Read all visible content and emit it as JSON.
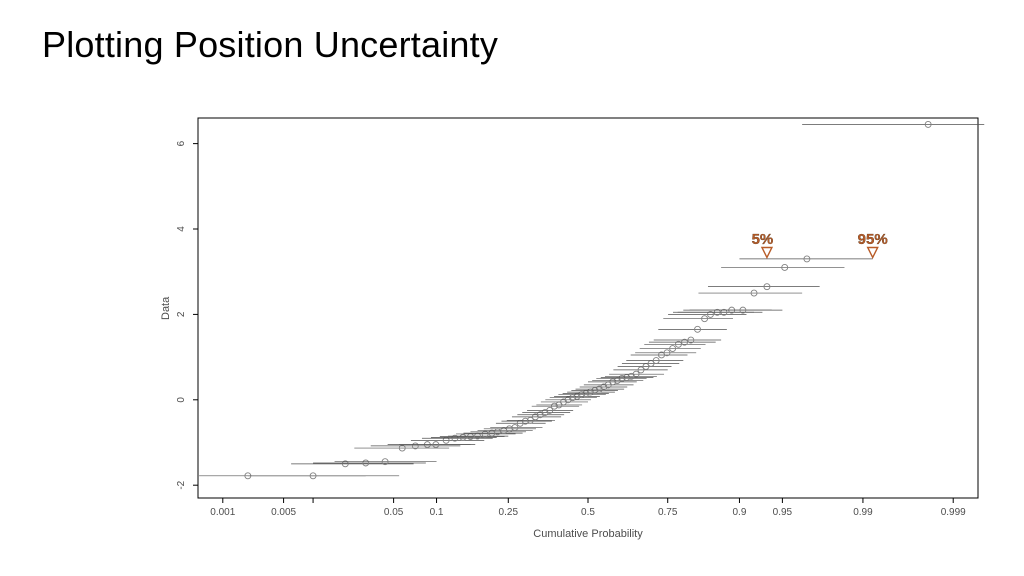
{
  "title": "Plotting Position Uncertainty",
  "chart": {
    "type": "scatter-errorbar-probability",
    "xlabel": "Cumulative Probability",
    "ylabel": "Data",
    "background_color": "#ffffff",
    "border_color": "#000000",
    "tick_color": "#000000",
    "grid_on": false,
    "label_fontsize": 11,
    "tick_fontsize": 10,
    "marker_style": "circle-open",
    "marker_size": 3,
    "marker_color": "#808080",
    "errorbar_color": "#505050",
    "errorbar_width": 0.7,
    "xticks_prob": [
      0.001,
      0.005,
      0.01,
      0.05,
      0.1,
      0.25,
      0.5,
      0.75,
      0.9,
      0.95,
      0.99,
      0.999
    ],
    "xtick_labels": [
      "0.001",
      "0.005",
      "",
      "0.05",
      "0.1",
      "0.25",
      "0.5",
      "0.75",
      "0.9",
      "0.95",
      "0.99",
      "0.999"
    ],
    "ylim": [
      -2.3,
      6.6
    ],
    "yticks": [
      -2,
      0,
      2,
      4,
      6
    ],
    "probit_xlim": [
      -3.3,
      3.3
    ],
    "annotations": [
      {
        "text": "5%",
        "prob": 0.93,
        "y": 3.65,
        "triangle_prob": 0.935,
        "triangle_y": 3.45,
        "color": "#b85c28"
      },
      {
        "text": "95%",
        "prob": 0.992,
        "y": 3.65,
        "triangle_prob": 0.992,
        "triangle_y": 3.45,
        "color": "#b85c28"
      }
    ],
    "points": [
      {
        "p": 0.002,
        "y": -1.78,
        "lo": 0.0005,
        "hi": 0.03
      },
      {
        "p": 0.01,
        "y": -1.78,
        "lo": 0.002,
        "hi": 0.055
      },
      {
        "p": 0.02,
        "y": -1.5,
        "lo": 0.006,
        "hi": 0.07
      },
      {
        "p": 0.03,
        "y": -1.48,
        "lo": 0.01,
        "hi": 0.085
      },
      {
        "p": 0.043,
        "y": -1.45,
        "lo": 0.016,
        "hi": 0.1
      },
      {
        "p": 0.058,
        "y": -1.13,
        "lo": 0.024,
        "hi": 0.12
      },
      {
        "p": 0.072,
        "y": -1.08,
        "lo": 0.033,
        "hi": 0.14
      },
      {
        "p": 0.087,
        "y": -1.05,
        "lo": 0.045,
        "hi": 0.16
      },
      {
        "p": 0.099,
        "y": -1.05,
        "lo": 0.055,
        "hi": 0.17
      },
      {
        "p": 0.115,
        "y": -0.95,
        "lo": 0.067,
        "hi": 0.19
      },
      {
        "p": 0.13,
        "y": -0.9,
        "lo": 0.08,
        "hi": 0.21
      },
      {
        "p": 0.145,
        "y": -0.88,
        "lo": 0.092,
        "hi": 0.22
      },
      {
        "p": 0.16,
        "y": -0.86,
        "lo": 0.105,
        "hi": 0.24
      },
      {
        "p": 0.175,
        "y": -0.85,
        "lo": 0.118,
        "hi": 0.25
      },
      {
        "p": 0.192,
        "y": -0.8,
        "lo": 0.132,
        "hi": 0.27
      },
      {
        "p": 0.208,
        "y": -0.78,
        "lo": 0.146,
        "hi": 0.29
      },
      {
        "p": 0.222,
        "y": -0.75,
        "lo": 0.16,
        "hi": 0.3
      },
      {
        "p": 0.238,
        "y": -0.72,
        "lo": 0.175,
        "hi": 0.32
      },
      {
        "p": 0.253,
        "y": -0.68,
        "lo": 0.189,
        "hi": 0.33
      },
      {
        "p": 0.268,
        "y": -0.65,
        "lo": 0.204,
        "hi": 0.35
      },
      {
        "p": 0.283,
        "y": -0.55,
        "lo": 0.218,
        "hi": 0.36
      },
      {
        "p": 0.298,
        "y": -0.5,
        "lo": 0.232,
        "hi": 0.38
      },
      {
        "p": 0.313,
        "y": -0.48,
        "lo": 0.246,
        "hi": 0.39
      },
      {
        "p": 0.328,
        "y": -0.4,
        "lo": 0.26,
        "hi": 0.41
      },
      {
        "p": 0.343,
        "y": -0.35,
        "lo": 0.275,
        "hi": 0.42
      },
      {
        "p": 0.358,
        "y": -0.3,
        "lo": 0.289,
        "hi": 0.44
      },
      {
        "p": 0.373,
        "y": -0.25,
        "lo": 0.303,
        "hi": 0.45
      },
      {
        "p": 0.388,
        "y": -0.15,
        "lo": 0.317,
        "hi": 0.47
      },
      {
        "p": 0.403,
        "y": -0.12,
        "lo": 0.331,
        "hi": 0.48
      },
      {
        "p": 0.418,
        "y": -0.05,
        "lo": 0.345,
        "hi": 0.5
      },
      {
        "p": 0.433,
        "y": 0.0,
        "lo": 0.359,
        "hi": 0.51
      },
      {
        "p": 0.448,
        "y": 0.05,
        "lo": 0.373,
        "hi": 0.53
      },
      {
        "p": 0.463,
        "y": 0.08,
        "lo": 0.387,
        "hi": 0.54
      },
      {
        "p": 0.478,
        "y": 0.12,
        "lo": 0.401,
        "hi": 0.56
      },
      {
        "p": 0.493,
        "y": 0.15,
        "lo": 0.415,
        "hi": 0.57
      },
      {
        "p": 0.508,
        "y": 0.18,
        "lo": 0.43,
        "hi": 0.59
      },
      {
        "p": 0.523,
        "y": 0.22,
        "lo": 0.444,
        "hi": 0.6
      },
      {
        "p": 0.538,
        "y": 0.25,
        "lo": 0.458,
        "hi": 0.62
      },
      {
        "p": 0.553,
        "y": 0.3,
        "lo": 0.472,
        "hi": 0.63
      },
      {
        "p": 0.568,
        "y": 0.35,
        "lo": 0.486,
        "hi": 0.65
      },
      {
        "p": 0.583,
        "y": 0.42,
        "lo": 0.5,
        "hi": 0.66
      },
      {
        "p": 0.598,
        "y": 0.45,
        "lo": 0.514,
        "hi": 0.68
      },
      {
        "p": 0.613,
        "y": 0.5,
        "lo": 0.528,
        "hi": 0.69
      },
      {
        "p": 0.628,
        "y": 0.52,
        "lo": 0.543,
        "hi": 0.71
      },
      {
        "p": 0.643,
        "y": 0.55,
        "lo": 0.557,
        "hi": 0.72
      },
      {
        "p": 0.658,
        "y": 0.6,
        "lo": 0.571,
        "hi": 0.74
      },
      {
        "p": 0.673,
        "y": 0.7,
        "lo": 0.585,
        "hi": 0.75
      },
      {
        "p": 0.688,
        "y": 0.78,
        "lo": 0.599,
        "hi": 0.76
      },
      {
        "p": 0.703,
        "y": 0.85,
        "lo": 0.613,
        "hi": 0.78
      },
      {
        "p": 0.718,
        "y": 0.92,
        "lo": 0.627,
        "hi": 0.79
      },
      {
        "p": 0.733,
        "y": 1.05,
        "lo": 0.641,
        "hi": 0.8
      },
      {
        "p": 0.748,
        "y": 1.1,
        "lo": 0.655,
        "hi": 0.82
      },
      {
        "p": 0.763,
        "y": 1.2,
        "lo": 0.669,
        "hi": 0.83
      },
      {
        "p": 0.778,
        "y": 1.3,
        "lo": 0.683,
        "hi": 0.84
      },
      {
        "p": 0.793,
        "y": 1.35,
        "lo": 0.697,
        "hi": 0.86
      },
      {
        "p": 0.808,
        "y": 1.4,
        "lo": 0.711,
        "hi": 0.87
      },
      {
        "p": 0.823,
        "y": 1.65,
        "lo": 0.724,
        "hi": 0.88
      },
      {
        "p": 0.838,
        "y": 1.9,
        "lo": 0.738,
        "hi": 0.89
      },
      {
        "p": 0.85,
        "y": 2.0,
        "lo": 0.751,
        "hi": 0.91
      },
      {
        "p": 0.863,
        "y": 2.05,
        "lo": 0.764,
        "hi": 0.92
      },
      {
        "p": 0.875,
        "y": 2.05,
        "lo": 0.776,
        "hi": 0.93
      },
      {
        "p": 0.888,
        "y": 2.1,
        "lo": 0.79,
        "hi": 0.94
      },
      {
        "p": 0.905,
        "y": 2.1,
        "lo": 0.805,
        "hi": 0.95
      },
      {
        "p": 0.92,
        "y": 2.5,
        "lo": 0.825,
        "hi": 0.965
      },
      {
        "p": 0.935,
        "y": 2.65,
        "lo": 0.845,
        "hi": 0.975
      },
      {
        "p": 0.952,
        "y": 3.1,
        "lo": 0.87,
        "hi": 0.985
      },
      {
        "p": 0.968,
        "y": 3.3,
        "lo": 0.9,
        "hi": 0.992
      },
      {
        "p": 0.998,
        "y": 6.45,
        "lo": 0.965,
        "hi": 0.9996
      }
    ]
  }
}
